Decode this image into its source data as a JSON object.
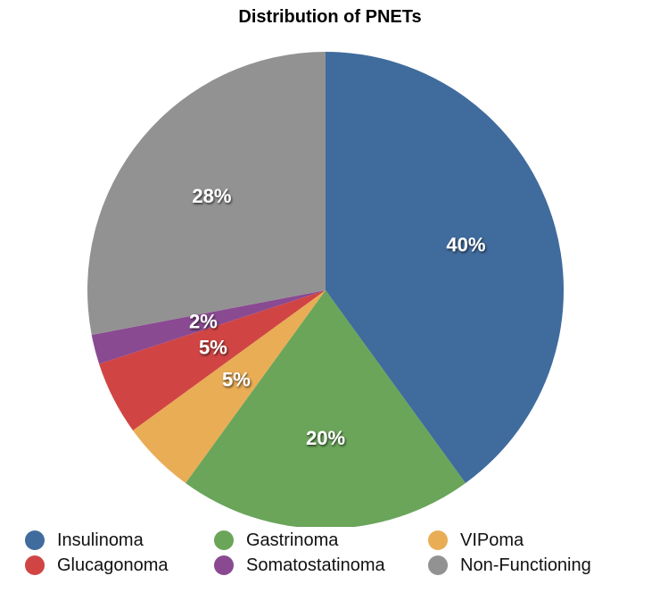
{
  "chart_data": {
    "type": "pie",
    "title": "Distribution of PNETs",
    "slices": [
      {
        "name": "Insulinoma",
        "value": 40,
        "label": "40%",
        "color": "#406b9d"
      },
      {
        "name": "Gastrinoma",
        "value": 20,
        "label": "20%",
        "color": "#6aa55a"
      },
      {
        "name": "VIPoma",
        "value": 5,
        "label": "5%",
        "color": "#e9ad55"
      },
      {
        "name": "Glucagonoma",
        "value": 5,
        "label": "5%",
        "color": "#d04544"
      },
      {
        "name": "Somatostatinoma",
        "value": 2,
        "label": "2%",
        "color": "#8a4a92"
      },
      {
        "name": "Non-Functioning",
        "value": 28,
        "label": "28%",
        "color": "#929292"
      }
    ],
    "legend_position": "bottom"
  }
}
